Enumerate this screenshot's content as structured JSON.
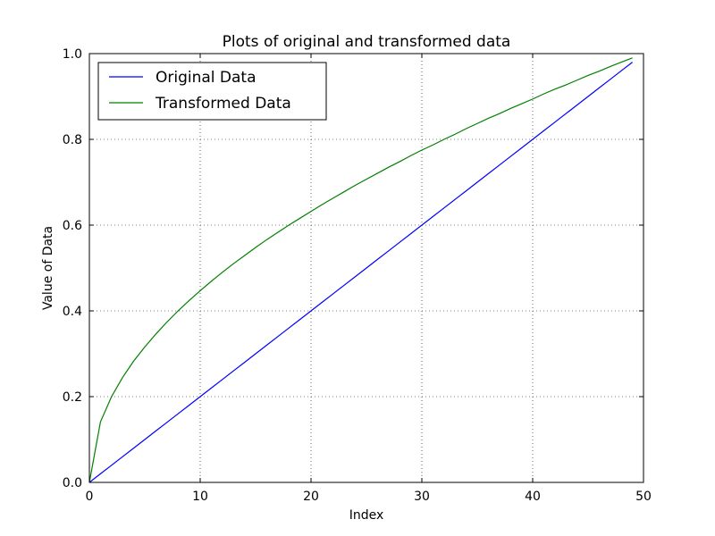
{
  "chart_data": {
    "type": "line",
    "title": "Plots of original and transformed data",
    "xlabel": "Index",
    "ylabel": "Value of Data",
    "xlim": [
      0,
      50
    ],
    "ylim": [
      0.0,
      1.0
    ],
    "x_ticks": [
      "0",
      "10",
      "20",
      "30",
      "40",
      "50"
    ],
    "y_ticks": [
      "0.0",
      "0.2",
      "0.4",
      "0.6",
      "0.8",
      "1.0"
    ],
    "grid": true,
    "legend_position": "top-left",
    "x": [
      0,
      1,
      2,
      3,
      4,
      5,
      6,
      7,
      8,
      9,
      10,
      11,
      12,
      13,
      14,
      15,
      16,
      17,
      18,
      19,
      20,
      21,
      22,
      23,
      24,
      25,
      26,
      27,
      28,
      29,
      30,
      31,
      32,
      33,
      34,
      35,
      36,
      37,
      38,
      39,
      40,
      41,
      42,
      43,
      44,
      45,
      46,
      47,
      48,
      49
    ],
    "series": [
      {
        "name": "Original Data",
        "color": "#0000ff",
        "values": [
          0.0,
          0.02,
          0.04,
          0.06,
          0.08,
          0.1,
          0.12,
          0.14,
          0.16,
          0.18,
          0.2,
          0.22,
          0.24,
          0.26,
          0.28,
          0.3,
          0.32,
          0.34,
          0.36,
          0.38,
          0.4,
          0.42,
          0.44,
          0.46,
          0.48,
          0.5,
          0.52,
          0.54,
          0.56,
          0.58,
          0.6,
          0.62,
          0.64,
          0.66,
          0.68,
          0.7,
          0.72,
          0.74,
          0.76,
          0.78,
          0.8,
          0.82,
          0.84,
          0.86,
          0.88,
          0.9,
          0.92,
          0.94,
          0.96,
          0.98
        ]
      },
      {
        "name": "Transformed Data",
        "color": "#008000",
        "values": [
          0.0,
          0.141,
          0.2,
          0.245,
          0.283,
          0.316,
          0.346,
          0.374,
          0.4,
          0.424,
          0.447,
          0.469,
          0.49,
          0.51,
          0.529,
          0.548,
          0.566,
          0.583,
          0.6,
          0.616,
          0.632,
          0.648,
          0.663,
          0.678,
          0.693,
          0.707,
          0.721,
          0.735,
          0.748,
          0.762,
          0.775,
          0.787,
          0.8,
          0.812,
          0.825,
          0.837,
          0.849,
          0.86,
          0.872,
          0.883,
          0.894,
          0.906,
          0.917,
          0.927,
          0.938,
          0.949,
          0.959,
          0.97,
          0.98,
          0.99
        ]
      }
    ]
  }
}
